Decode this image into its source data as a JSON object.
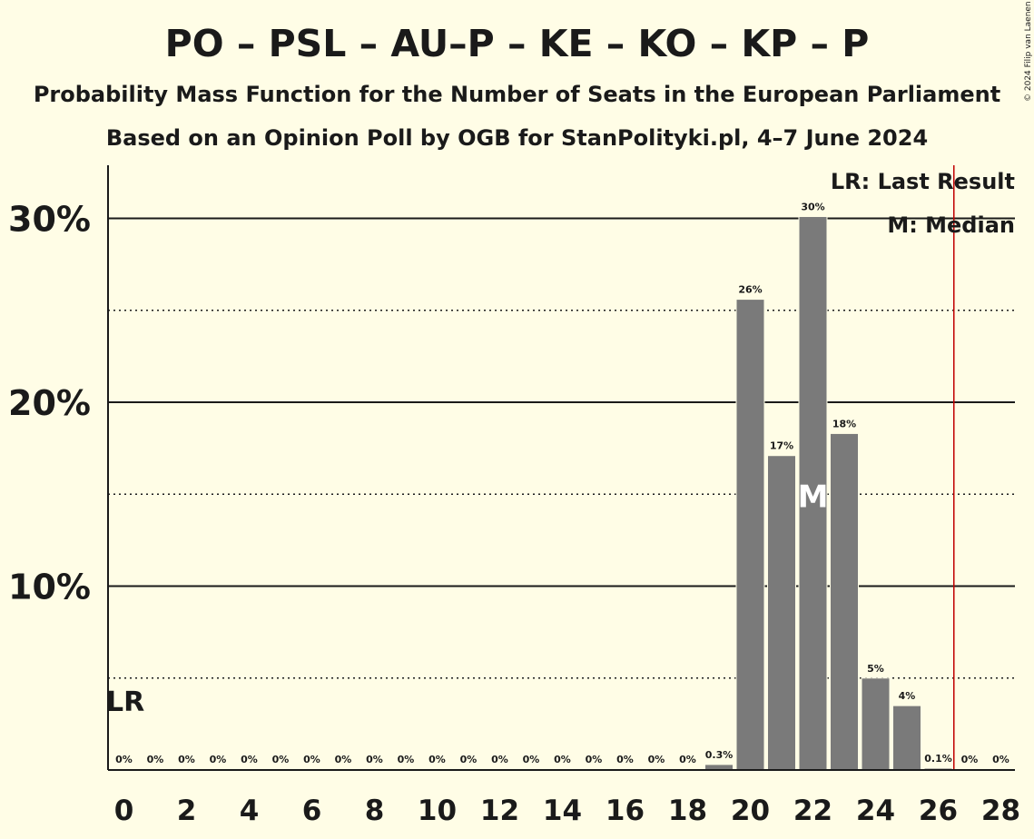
{
  "header": {
    "title": "PO – PSL – AU–P – KE – KO – KP – P",
    "subtitle": "Probability Mass Function for the Number of Seats in the European Parliament",
    "subtitle2": "Based on an Opinion Poll by OGB for StanPolityki.pl, 4–7 June 2024",
    "copyright": "© 2024 Filip van Laenen"
  },
  "legend": {
    "last_result": "LR: Last Result",
    "median": "M: Median"
  },
  "chart_data": {
    "type": "bar",
    "x": [
      0,
      1,
      2,
      3,
      4,
      5,
      6,
      7,
      8,
      9,
      10,
      11,
      12,
      13,
      14,
      15,
      16,
      17,
      18,
      19,
      20,
      21,
      22,
      23,
      24,
      25,
      26,
      27,
      28
    ],
    "values": [
      0,
      0,
      0,
      0,
      0,
      0,
      0,
      0,
      0,
      0,
      0,
      0,
      0,
      0,
      0,
      0,
      0,
      0,
      0,
      0.3,
      25.6,
      17.1,
      30.1,
      18.3,
      5.0,
      3.5,
      0.1,
      0,
      0
    ],
    "data_labels": [
      "0%",
      "0%",
      "0%",
      "0%",
      "0%",
      "0%",
      "0%",
      "0%",
      "0%",
      "0%",
      "0%",
      "0%",
      "0%",
      "0%",
      "0%",
      "0%",
      "0%",
      "0%",
      "0%",
      "0.3%",
      "26%",
      "17%",
      "30%",
      "18%",
      "5%",
      "4%",
      "0.1%",
      "0%",
      "0%"
    ],
    "x_tick_labels": [
      "0",
      "2",
      "4",
      "6",
      "8",
      "10",
      "12",
      "14",
      "16",
      "18",
      "20",
      "22",
      "24",
      "26",
      "28"
    ],
    "y_tick_labels": [
      "10%",
      "20%",
      "30%"
    ],
    "ylim": [
      0,
      32.8
    ],
    "grid": "solid lines at 10% intervals, dotted lines at 5% midpoints",
    "last_result_seats": 26.5,
    "last_result_marker": "LR",
    "median_seats": 22,
    "median_marker": "M",
    "colors": {
      "bar": "#7a7a7a",
      "background": "#fffde6",
      "last_result_line": "#c00000",
      "text": "#1a1a1a"
    }
  }
}
